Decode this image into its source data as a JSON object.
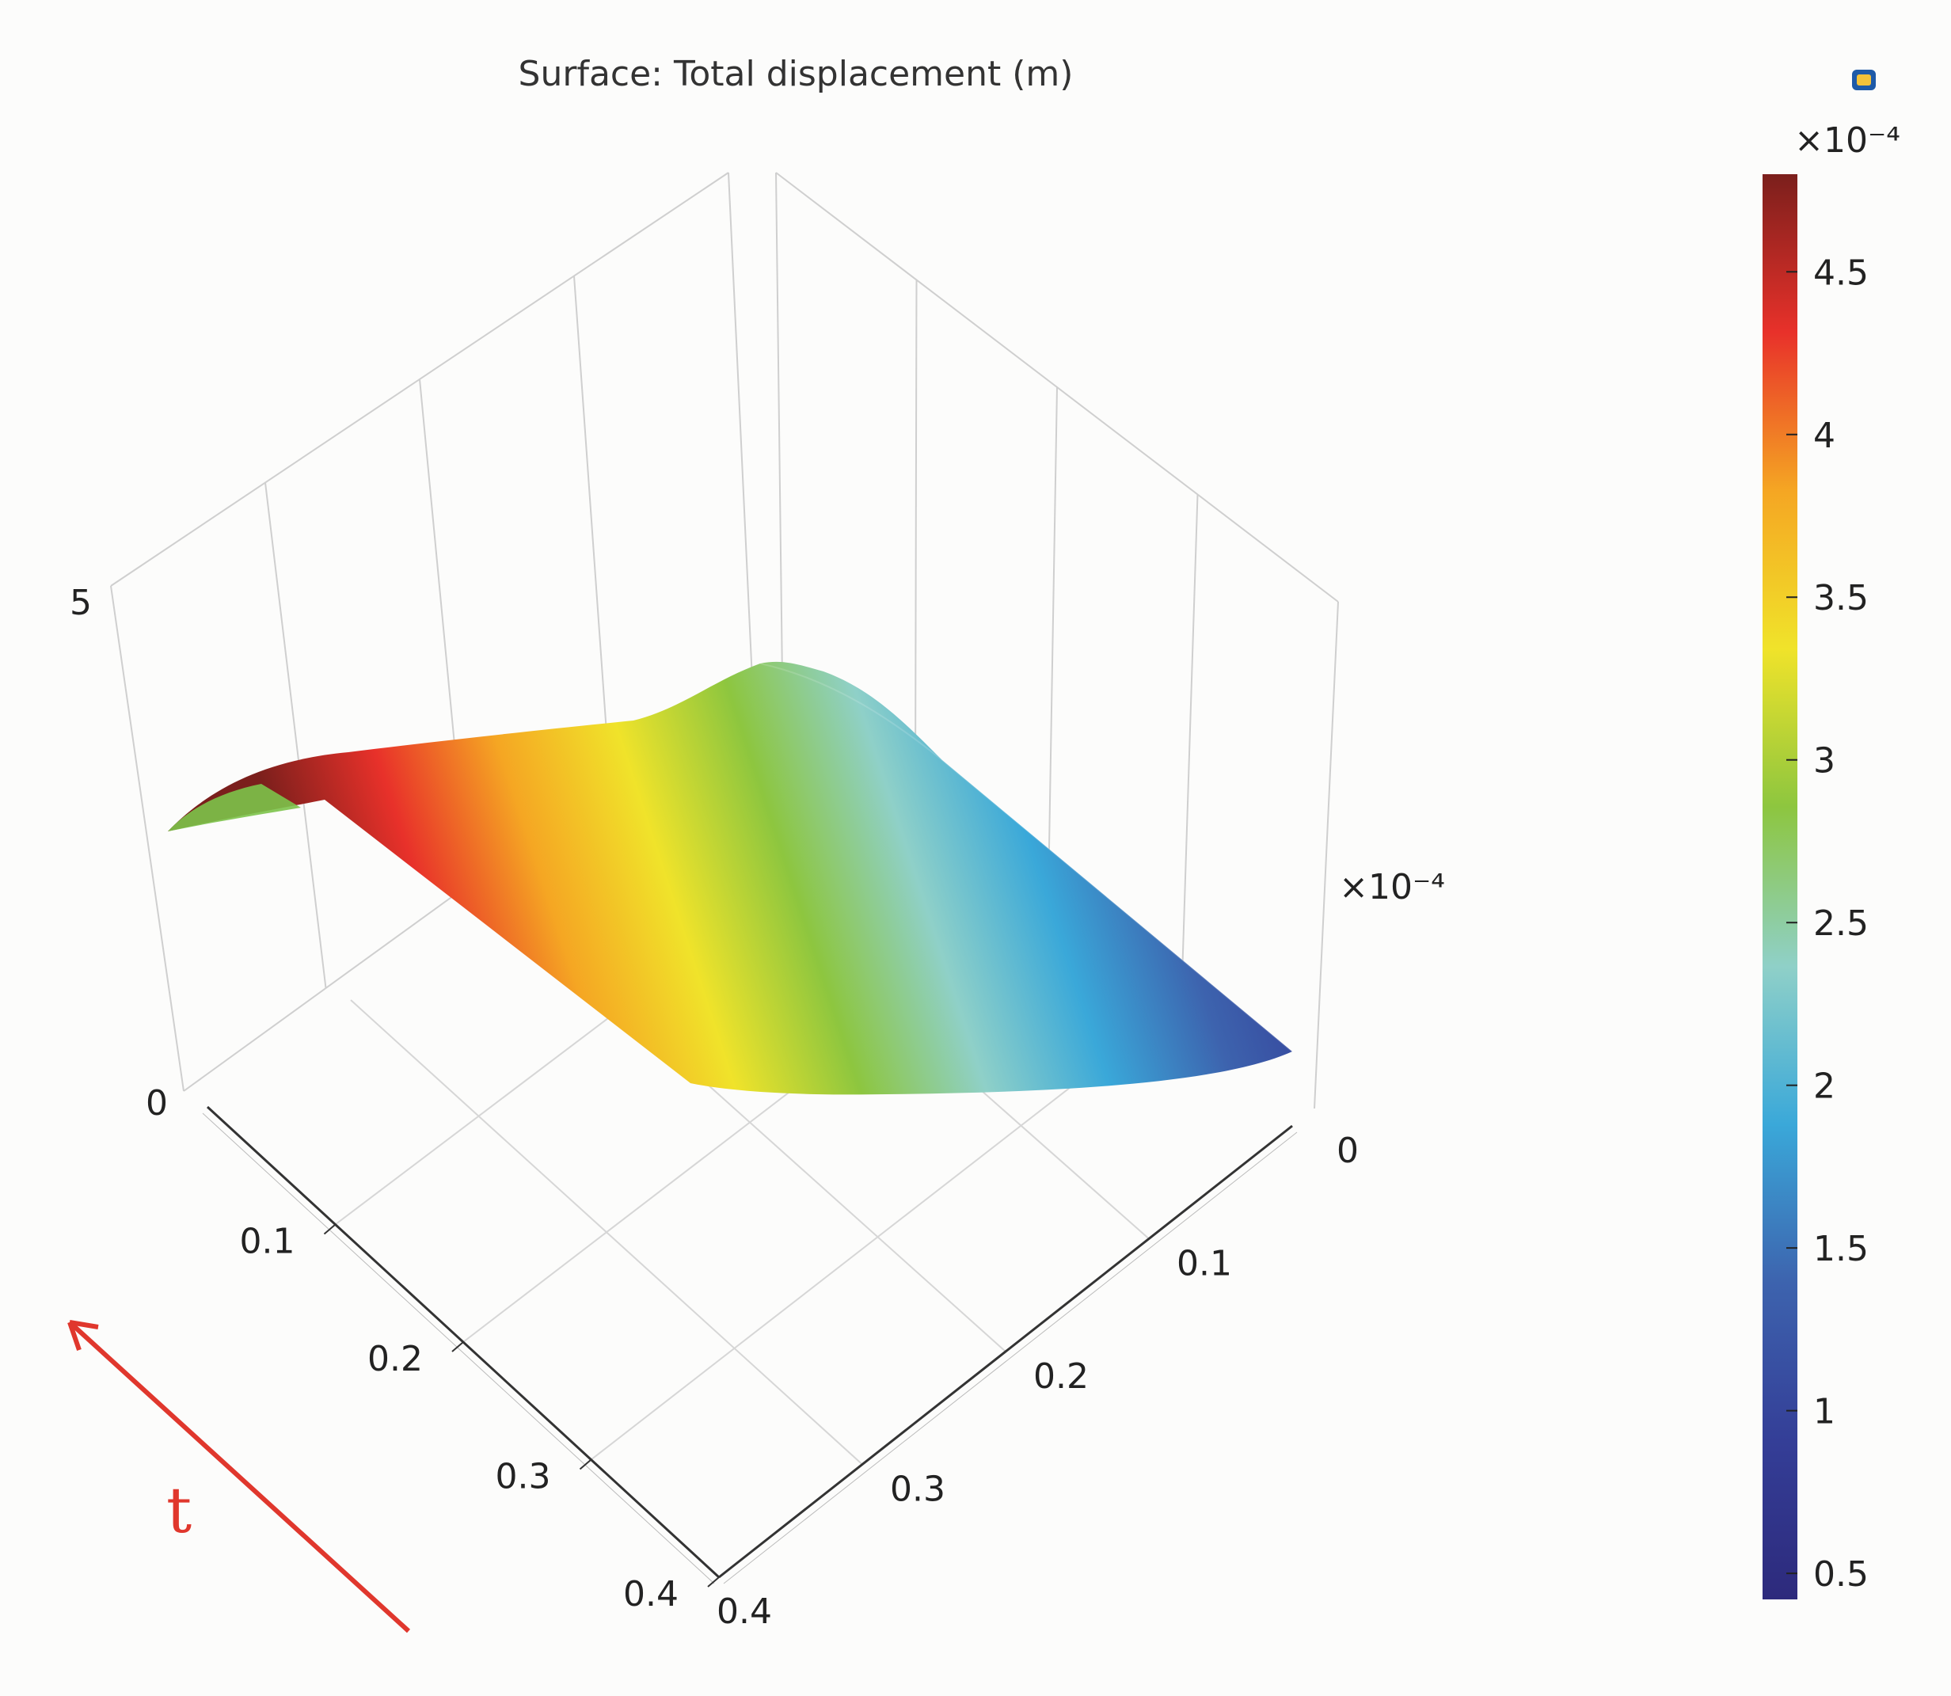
{
  "chart_data": {
    "type": "surface3d",
    "title": "Surface: Total displacement (m)",
    "x_axis": {
      "label": "",
      "ticks": [
        "0",
        "0.1",
        "0.2",
        "0.3",
        "0.4"
      ],
      "range": [
        0,
        0.4
      ]
    },
    "y_axis": {
      "label": "",
      "ticks": [
        "0.1",
        "0.2",
        "0.3",
        "0.4"
      ],
      "range": [
        0,
        0.4
      ]
    },
    "z_axis": {
      "label": "",
      "multiplier": "×10⁻⁴",
      "ticks": [
        "0",
        "5"
      ],
      "range": [
        0,
        5
      ]
    },
    "colorbar": {
      "multiplier": "×10⁻⁴",
      "ticks": [
        "0.5",
        "1",
        "1.5",
        "2",
        "2.5",
        "3",
        "3.5",
        "4",
        "4.5"
      ],
      "tick_values": [
        0.5,
        1,
        1.5,
        2,
        2.5,
        3,
        3.5,
        4,
        4.5
      ],
      "range": [
        0.42,
        4.8
      ],
      "colormap": [
        "#2d2a7c",
        "#343e97",
        "#3d63ae",
        "#3aa8d9",
        "#8fd0c8",
        "#8dc63f",
        "#f0e32a",
        "#f5a623",
        "#e8312a",
        "#7b1f1c"
      ]
    },
    "surface": {
      "description": "displacement over spatial coordinate and time",
      "edge_values": [
        2.5,
        3.8,
        4.8,
        4.2,
        3.0,
        2.0,
        1.2,
        0.6
      ]
    },
    "annotation": {
      "label": "t",
      "color": "#e0372d"
    }
  }
}
